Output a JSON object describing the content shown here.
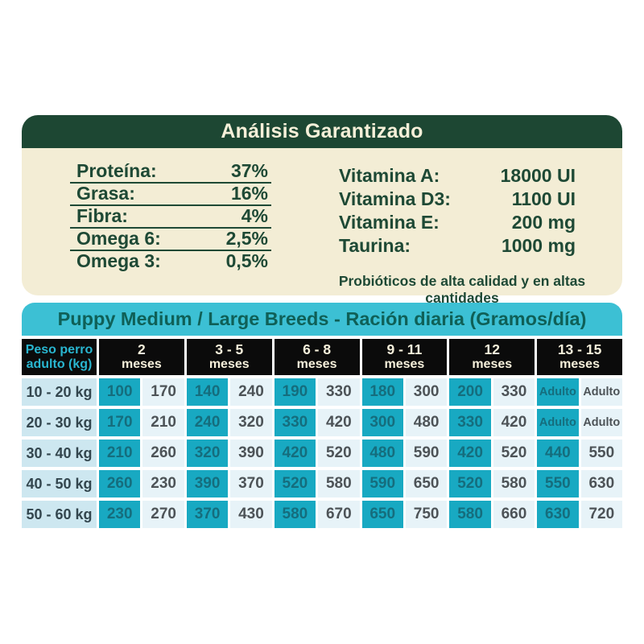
{
  "analysis": {
    "title": "Análisis Garantizado",
    "nutrients": [
      {
        "label": "Proteína:",
        "value": "37%"
      },
      {
        "label": "Grasa:",
        "value": "16%"
      },
      {
        "label": "Fibra:",
        "value": "4%"
      },
      {
        "label": "Omega 6:",
        "value": "2,5%"
      },
      {
        "label": "Omega 3:",
        "value": "0,5%"
      }
    ],
    "vitamins": [
      {
        "label": "Vitamina A:",
        "value": "18000 UI"
      },
      {
        "label": "Vitamina D3:",
        "value": "1100 UI"
      },
      {
        "label": "Vitamina E:",
        "value": "200 mg"
      },
      {
        "label": "Taurina:",
        "value": "1000 mg"
      }
    ],
    "footnote": "Probióticos de alta calidad y en altas cantidades"
  },
  "feeding_table": {
    "title": "Puppy Medium / Large Breeds - Ración diaria (Gramos/día)",
    "weight_header": "Peso perro\nadulto (kg)",
    "month_headers": [
      {
        "range": "2",
        "unit": "meses"
      },
      {
        "range": "3 - 5",
        "unit": "meses"
      },
      {
        "range": "6 - 8",
        "unit": "meses"
      },
      {
        "range": "9 - 11",
        "unit": "meses"
      },
      {
        "range": "12",
        "unit": "meses"
      },
      {
        "range": "13 - 15",
        "unit": "meses"
      }
    ],
    "rows": [
      {
        "weight": "10 - 20 kg",
        "values": [
          "100",
          "170",
          "140",
          "240",
          "190",
          "330",
          "180",
          "300",
          "200",
          "330",
          "Adulto",
          "Adulto"
        ]
      },
      {
        "weight": "20 - 30 kg",
        "values": [
          "170",
          "210",
          "240",
          "320",
          "330",
          "420",
          "300",
          "480",
          "330",
          "420",
          "Adulto",
          "Adulto"
        ]
      },
      {
        "weight": "30 - 40 kg",
        "values": [
          "210",
          "260",
          "320",
          "390",
          "420",
          "520",
          "480",
          "590",
          "420",
          "520",
          "440",
          "550"
        ]
      },
      {
        "weight": "40 - 50 kg",
        "values": [
          "260",
          "230",
          "390",
          "370",
          "520",
          "580",
          "590",
          "650",
          "520",
          "580",
          "550",
          "630"
        ]
      },
      {
        "weight": "50 - 60 kg",
        "values": [
          "230",
          "270",
          "370",
          "430",
          "580",
          "670",
          "650",
          "750",
          "580",
          "660",
          "630",
          "720"
        ]
      }
    ]
  },
  "colors": {
    "dark_green": "#1d4733",
    "cream": "#f3edd5",
    "cyan_bar": "#3cc0d4",
    "teal_cell": "#18a9c2",
    "pale_cell": "#e7f3f8",
    "weight_cell": "#cde7f0",
    "header_black": "#0b0b0b",
    "header_cyan_text": "#29b6d0"
  }
}
